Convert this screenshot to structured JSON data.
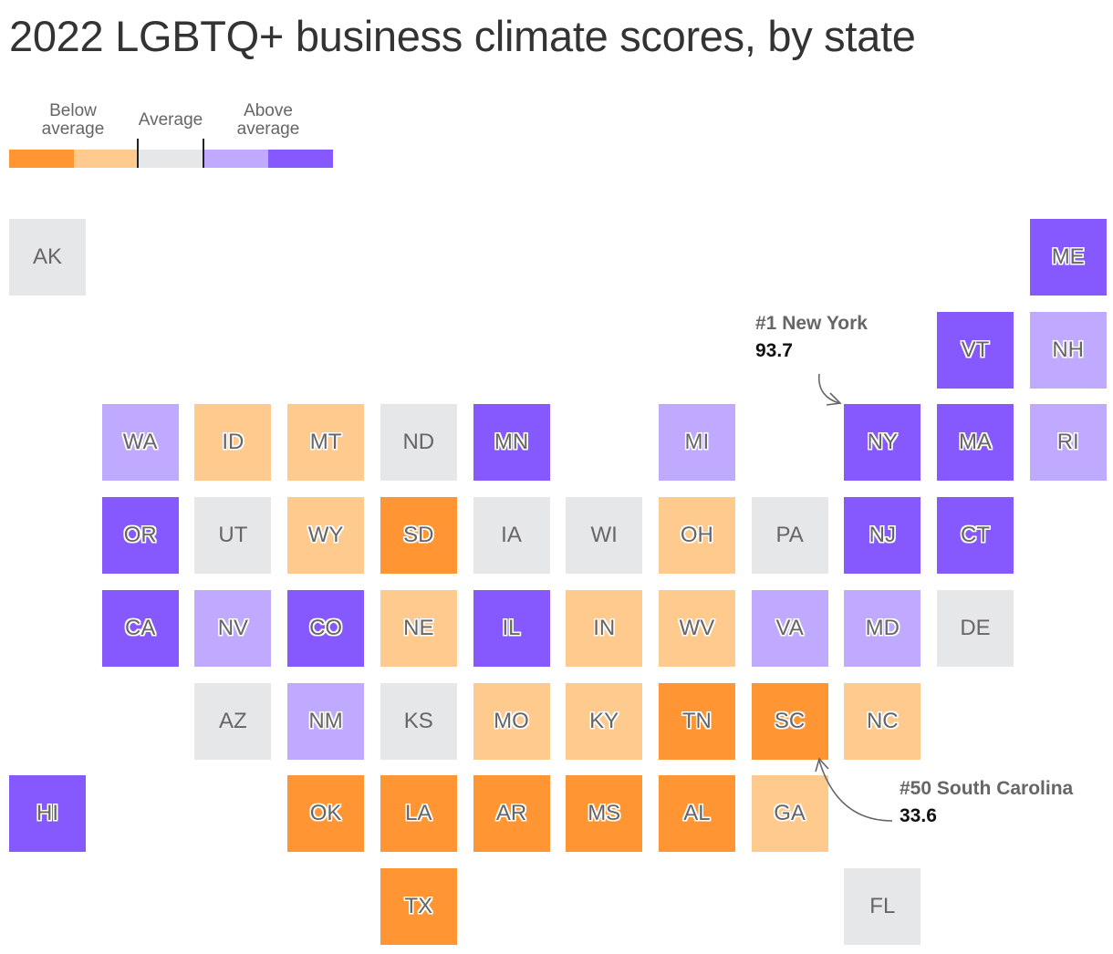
{
  "title": "2022 LGBTQ+ business climate scores, by state",
  "legend": {
    "below_label": "Below average",
    "average_label": "Average",
    "above_label": "Above average",
    "categories": [
      {
        "key": "below2",
        "color": "#ff9633"
      },
      {
        "key": "below1",
        "color": "#ffca8e"
      },
      {
        "key": "average",
        "color": "#e6e7e8"
      },
      {
        "key": "above1",
        "color": "#c0aaff"
      },
      {
        "key": "above2",
        "color": "#8659ff"
      }
    ]
  },
  "chart_data": {
    "type": "tile-grid-map",
    "states": [
      {
        "abbr": "AK",
        "col": 0,
        "row": 0,
        "category": "average"
      },
      {
        "abbr": "ME",
        "col": 11,
        "row": 0,
        "category": "above2"
      },
      {
        "abbr": "VT",
        "col": 10,
        "row": 1,
        "category": "above2"
      },
      {
        "abbr": "NH",
        "col": 11,
        "row": 1,
        "category": "above1"
      },
      {
        "abbr": "WA",
        "col": 1,
        "row": 2,
        "category": "above1"
      },
      {
        "abbr": "ID",
        "col": 2,
        "row": 2,
        "category": "below1"
      },
      {
        "abbr": "MT",
        "col": 3,
        "row": 2,
        "category": "below1"
      },
      {
        "abbr": "ND",
        "col": 4,
        "row": 2,
        "category": "average"
      },
      {
        "abbr": "MN",
        "col": 5,
        "row": 2,
        "category": "above2"
      },
      {
        "abbr": "MI",
        "col": 7,
        "row": 2,
        "category": "above1"
      },
      {
        "abbr": "NY",
        "col": 9,
        "row": 2,
        "category": "above2"
      },
      {
        "abbr": "MA",
        "col": 10,
        "row": 2,
        "category": "above2"
      },
      {
        "abbr": "RI",
        "col": 11,
        "row": 2,
        "category": "above1"
      },
      {
        "abbr": "OR",
        "col": 1,
        "row": 3,
        "category": "above2"
      },
      {
        "abbr": "UT",
        "col": 2,
        "row": 3,
        "category": "average"
      },
      {
        "abbr": "WY",
        "col": 3,
        "row": 3,
        "category": "below1"
      },
      {
        "abbr": "SD",
        "col": 4,
        "row": 3,
        "category": "below2"
      },
      {
        "abbr": "IA",
        "col": 5,
        "row": 3,
        "category": "average"
      },
      {
        "abbr": "WI",
        "col": 6,
        "row": 3,
        "category": "average"
      },
      {
        "abbr": "OH",
        "col": 7,
        "row": 3,
        "category": "below1"
      },
      {
        "abbr": "PA",
        "col": 8,
        "row": 3,
        "category": "average"
      },
      {
        "abbr": "NJ",
        "col": 9,
        "row": 3,
        "category": "above2"
      },
      {
        "abbr": "CT",
        "col": 10,
        "row": 3,
        "category": "above2"
      },
      {
        "abbr": "CA",
        "col": 1,
        "row": 4,
        "category": "above2"
      },
      {
        "abbr": "NV",
        "col": 2,
        "row": 4,
        "category": "above1"
      },
      {
        "abbr": "CO",
        "col": 3,
        "row": 4,
        "category": "above2"
      },
      {
        "abbr": "NE",
        "col": 4,
        "row": 4,
        "category": "below1"
      },
      {
        "abbr": "IL",
        "col": 5,
        "row": 4,
        "category": "above2"
      },
      {
        "abbr": "IN",
        "col": 6,
        "row": 4,
        "category": "below1"
      },
      {
        "abbr": "WV",
        "col": 7,
        "row": 4,
        "category": "below1"
      },
      {
        "abbr": "VA",
        "col": 8,
        "row": 4,
        "category": "above1"
      },
      {
        "abbr": "MD",
        "col": 9,
        "row": 4,
        "category": "above1"
      },
      {
        "abbr": "DE",
        "col": 10,
        "row": 4,
        "category": "average"
      },
      {
        "abbr": "AZ",
        "col": 2,
        "row": 5,
        "category": "average"
      },
      {
        "abbr": "NM",
        "col": 3,
        "row": 5,
        "category": "above1"
      },
      {
        "abbr": "KS",
        "col": 4,
        "row": 5,
        "category": "average"
      },
      {
        "abbr": "MO",
        "col": 5,
        "row": 5,
        "category": "below1"
      },
      {
        "abbr": "KY",
        "col": 6,
        "row": 5,
        "category": "below1"
      },
      {
        "abbr": "TN",
        "col": 7,
        "row": 5,
        "category": "below2"
      },
      {
        "abbr": "SC",
        "col": 8,
        "row": 5,
        "category": "below2"
      },
      {
        "abbr": "NC",
        "col": 9,
        "row": 5,
        "category": "below1"
      },
      {
        "abbr": "HI",
        "col": 0,
        "row": 6,
        "category": "above2"
      },
      {
        "abbr": "OK",
        "col": 3,
        "row": 6,
        "category": "below2"
      },
      {
        "abbr": "LA",
        "col": 4,
        "row": 6,
        "category": "below2"
      },
      {
        "abbr": "AR",
        "col": 5,
        "row": 6,
        "category": "below2"
      },
      {
        "abbr": "MS",
        "col": 6,
        "row": 6,
        "category": "below2"
      },
      {
        "abbr": "AL",
        "col": 7,
        "row": 6,
        "category": "below2"
      },
      {
        "abbr": "GA",
        "col": 8,
        "row": 6,
        "category": "below1"
      },
      {
        "abbr": "TX",
        "col": 4,
        "row": 7,
        "category": "below2"
      },
      {
        "abbr": "FL",
        "col": 9,
        "row": 7,
        "category": "average"
      }
    ]
  },
  "annotations": {
    "top": {
      "label": "#1 New York",
      "value": "93.7"
    },
    "bottom": {
      "label": "#50 South Carolina",
      "value": "33.6"
    }
  }
}
